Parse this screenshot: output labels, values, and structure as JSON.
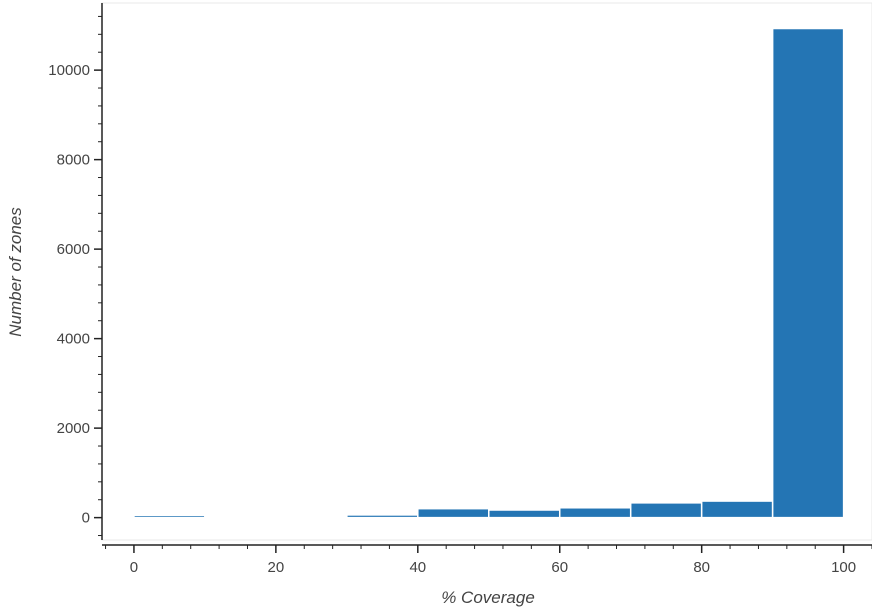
{
  "chart_data": {
    "type": "bar",
    "title": "",
    "xlabel": "% Coverage",
    "ylabel": "Number of zones",
    "bins": [
      {
        "x0": 0,
        "x1": 10,
        "count": 50
      },
      {
        "x0": 10,
        "x1": 20,
        "count": 30
      },
      {
        "x0": 20,
        "x1": 30,
        "count": 30
      },
      {
        "x0": 30,
        "x1": 40,
        "count": 60
      },
      {
        "x0": 40,
        "x1": 50,
        "count": 200
      },
      {
        "x0": 50,
        "x1": 60,
        "count": 170
      },
      {
        "x0": 60,
        "x1": 70,
        "count": 220
      },
      {
        "x0": 70,
        "x1": 80,
        "count": 330
      },
      {
        "x0": 80,
        "x1": 90,
        "count": 370
      },
      {
        "x0": 90,
        "x1": 100,
        "count": 10930
      }
    ],
    "xlim": [
      -4.5,
      104
    ],
    "ylim": [
      -500,
      11500
    ],
    "x_ticks": [
      "0",
      "20",
      "40",
      "60",
      "80",
      "100"
    ],
    "y_ticks": [
      "0",
      "2000",
      "4000",
      "6000",
      "8000",
      "10000"
    ],
    "grid": false,
    "legend": "none",
    "bar_color": "#2475b4",
    "bar_edge_color": "#ffffff",
    "axis_color": "#222222",
    "frame_color": "#e8e8e8"
  }
}
